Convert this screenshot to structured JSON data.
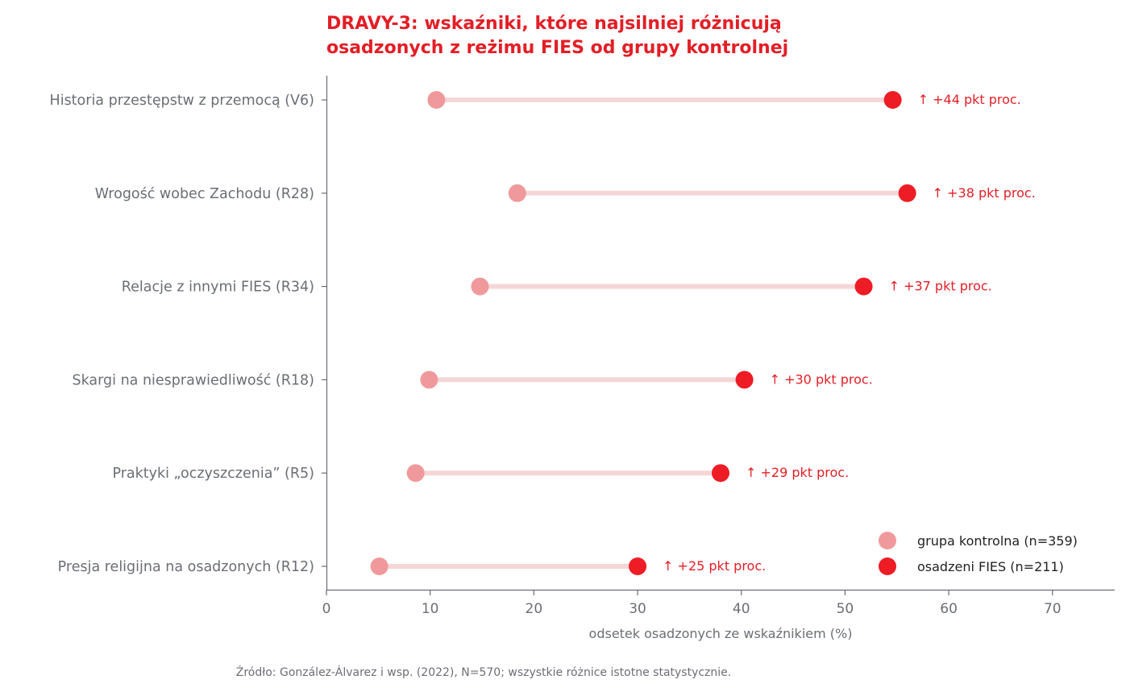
{
  "chart_data": {
    "type": "dumbbell",
    "title_lines": [
      "DRAVY-3: wskaźniki, które najsilniej różnicują",
      "osadzonych z reżimu FIES od grupy kontrolnej"
    ],
    "xlabel": "odsetek osadzonych ze wskaźnikiem (%)",
    "xlim": [
      0,
      76
    ],
    "xticks": [
      0,
      10,
      20,
      30,
      40,
      50,
      60,
      70
    ],
    "categories": [
      "Historia przestępstw z przemocą (V6)",
      "Wrogość wobec Zachodu (R28)",
      "Relacje z innymi FIES (R34)",
      "Skargi na niesprawiedliwość (R18)",
      "Praktyki „oczyszczenia” (R5)",
      "Presja religijna na osadzonych (R12)"
    ],
    "series": [
      {
        "name": "grupa kontrolna (n=359)",
        "color": "#f0999c",
        "values": [
          10.6,
          18.4,
          14.8,
          9.9,
          8.6,
          5.1
        ]
      },
      {
        "name": "osadzeni FIES (n=211)",
        "color": "#ee1c25",
        "values": [
          54.6,
          56.0,
          51.8,
          40.3,
          38.0,
          30.0
        ]
      }
    ],
    "diff_labels": [
      "↑ +44 pkt proc.",
      "↑ +38 pkt proc.",
      "↑ +37 pkt proc.",
      "↑ +30 pkt proc.",
      "↑ +29 pkt proc.",
      "↑ +25 pkt proc."
    ],
    "connector_color": "#f5d6d6",
    "legend_position": "bottom-right",
    "grid": false
  },
  "source": "Źródło: González-Álvarez i wsp. (2022), N=570; wszystkie różnice istotne statystycznie."
}
